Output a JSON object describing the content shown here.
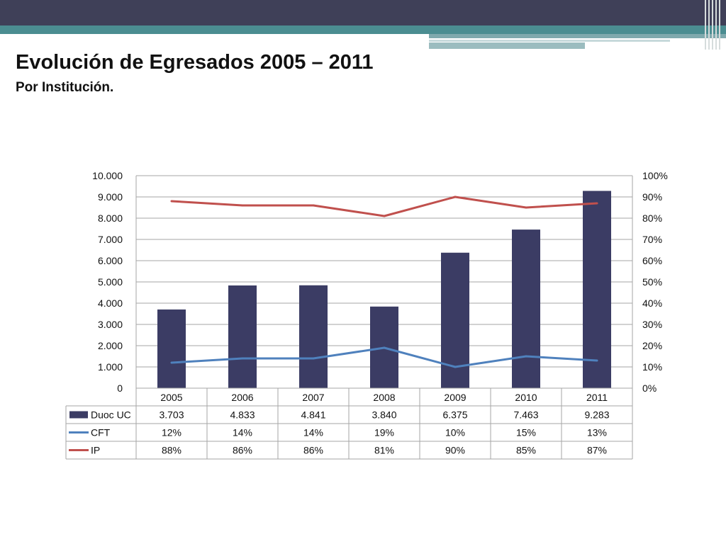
{
  "slide": {
    "title": "Evolución de Egresados 2005 – 2011",
    "subtitle": "Por Institución."
  },
  "colors": {
    "bar": "#3b3c64",
    "cft": "#4f81bd",
    "ip": "#c0504d",
    "grid": "#a6a6a6",
    "header_bar": "#3f4058",
    "teal": "#4b8d91"
  },
  "chart_data": {
    "type": "bar",
    "categories": [
      "2005",
      "2006",
      "2007",
      "2008",
      "2009",
      "2010",
      "2011"
    ],
    "left_axis": {
      "ylim": [
        0,
        10000
      ],
      "ticks": [
        "0",
        "1.000",
        "2.000",
        "3.000",
        "4.000",
        "5.000",
        "6.000",
        "7.000",
        "8.000",
        "9.000",
        "10.000"
      ]
    },
    "right_axis": {
      "ylim": [
        0,
        100
      ],
      "ticks": [
        "0%",
        "10%",
        "20%",
        "30%",
        "40%",
        "50%",
        "60%",
        "70%",
        "80%",
        "90%",
        "100%"
      ]
    },
    "series": [
      {
        "name": "Duoc UC",
        "kind": "bar",
        "axis": "left",
        "values": [
          3703,
          4833,
          4841,
          3840,
          6375,
          7463,
          9283
        ],
        "labels": [
          "3.703",
          "4.833",
          "4.841",
          "3.840",
          "6.375",
          "7.463",
          "9.283"
        ]
      },
      {
        "name": "CFT",
        "kind": "line",
        "axis": "right",
        "values": [
          12,
          14,
          14,
          19,
          10,
          15,
          13
        ],
        "labels": [
          "12%",
          "14%",
          "14%",
          "19%",
          "10%",
          "15%",
          "13%"
        ]
      },
      {
        "name": "IP",
        "kind": "line",
        "axis": "right",
        "values": [
          88,
          86,
          86,
          81,
          90,
          85,
          87
        ],
        "labels": [
          "88%",
          "86%",
          "86%",
          "81%",
          "90%",
          "85%",
          "87%"
        ]
      }
    ],
    "data_table": true,
    "grid": true
  }
}
